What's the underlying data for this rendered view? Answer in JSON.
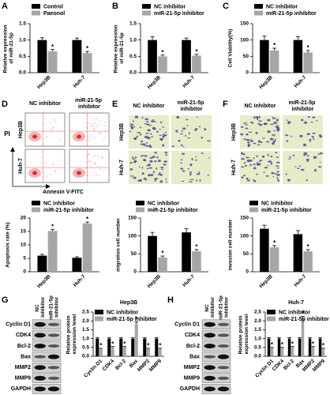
{
  "panel_labels": [
    "A",
    "B",
    "C",
    "D",
    "E",
    "F",
    "G",
    "H"
  ],
  "chart_data": [
    {
      "type": "bar",
      "y_label": "Relative expression of miR-21-5p",
      "categories": [
        "Hep3B",
        "Huh-7"
      ],
      "series": [
        {
          "name": "Control",
          "color": "#000000",
          "values": [
            1.0,
            1.0
          ],
          "errors": [
            0.07,
            0.06
          ]
        },
        {
          "name": "Paeonol",
          "color": "#a6a6a6",
          "values": [
            0.65,
            0.6
          ],
          "errors": [
            0.06,
            0.05
          ],
          "annotations": [
            "*",
            "*"
          ]
        }
      ],
      "ylim": [
        0,
        1.5
      ],
      "yticks": [
        {
          "value": 0,
          "label": "0.0"
        },
        0.5,
        {
          "value": 1,
          "label": "1.0"
        },
        1.5
      ]
    },
    {
      "type": "bar",
      "y_label": "Relative expression of miR-21-5p",
      "categories": [
        "Hep3B",
        "Huh-7"
      ],
      "series": [
        {
          "name": "NC inhibitor",
          "color": "#000000",
          "values": [
            1.0,
            1.0
          ],
          "errors": [
            0.1,
            0.06
          ]
        },
        {
          "name": "miR-21-5p inhibitor",
          "color": "#a6a6a6",
          "values": [
            0.5,
            0.52
          ],
          "errors": [
            0.04,
            0.04
          ],
          "annotations": [
            "*",
            "*"
          ]
        }
      ],
      "ylim": [
        0,
        1.5
      ],
      "yticks": [
        {
          "value": 0,
          "label": "0.0"
        },
        0.5,
        {
          "value": 1,
          "label": "1.0"
        },
        1.5
      ]
    },
    {
      "type": "bar",
      "y_label": "Cell Viability(%)",
      "categories": [
        "Hep3B",
        "Huh-7"
      ],
      "series": [
        {
          "name": "NC inhibitor",
          "color": "#000000",
          "values": [
            100,
            100
          ],
          "errors": [
            12,
            10
          ]
        },
        {
          "name": "miR-21-5p inhibitor",
          "color": "#a6a6a6",
          "values": [
            68,
            62
          ],
          "errors": [
            7,
            6
          ],
          "annotations": [
            "*",
            "*"
          ]
        }
      ],
      "ylim": [
        0,
        150
      ],
      "yticks": [
        0,
        50,
        100,
        150
      ]
    },
    {
      "type": "bar",
      "y_label": "Apoptosis rate (%)",
      "categories": [
        "Hep3B",
        "Huh-7"
      ],
      "series": [
        {
          "name": "NC inhibitor",
          "color": "#000000",
          "values": [
            6,
            5.2
          ],
          "errors": [
            0.5,
            0.4
          ]
        },
        {
          "name": "miR-21-5p inhibitor",
          "color": "#a6a6a6",
          "values": [
            15.2,
            18
          ],
          "errors": [
            0.6,
            0.5
          ],
          "annotations": [
            "*",
            "*"
          ]
        }
      ],
      "ylim": [
        0,
        20
      ],
      "yticks": [
        0,
        5,
        10,
        15,
        20
      ]
    },
    {
      "type": "bar",
      "y_label": "migration cell number",
      "categories": [
        "Hep3B",
        "Huh-7"
      ],
      "series": [
        {
          "name": "NC inhibitor",
          "color": "#000000",
          "values": [
            100,
            110
          ],
          "errors": [
            10,
            10
          ]
        },
        {
          "name": "miR-21-5p inhibitor",
          "color": "#a6a6a6",
          "values": [
            40,
            57
          ],
          "errors": [
            4,
            5
          ],
          "annotations": [
            "*",
            "*"
          ]
        }
      ],
      "ylim": [
        0,
        150
      ],
      "yticks": [
        0,
        50,
        100,
        150
      ]
    },
    {
      "type": "bar",
      "y_label": "invasion cell number",
      "categories": [
        "Hep3B",
        "Huh-7"
      ],
      "series": [
        {
          "name": "NC inhibitor",
          "color": "#000000",
          "values": [
            120,
            105
          ],
          "errors": [
            10,
            10
          ]
        },
        {
          "name": "miR-21-5p inhibitor",
          "color": "#a6a6a6",
          "values": [
            68,
            57
          ],
          "errors": [
            5,
            5
          ],
          "annotations": [
            "*",
            "*"
          ]
        }
      ],
      "ylim": [
        0,
        150
      ],
      "yticks": [
        0,
        50,
        100,
        150
      ]
    },
    {
      "type": "bar",
      "title": "Hep3B",
      "y_label": "Relative protein expression level",
      "categories": [
        "Cyclin D1",
        "CDK4",
        "Bcl-2",
        "Bax",
        "MMP2",
        "MMP9"
      ],
      "series": [
        {
          "name": "NC inhibitor",
          "color": "#000000",
          "values": [
            1,
            1,
            1,
            1,
            1,
            1
          ],
          "errors": [
            0.06,
            0.06,
            0.06,
            0.06,
            0.06,
            0.06
          ]
        },
        {
          "name": "miR-21-5p inhibitor",
          "color": "#a6a6a6",
          "values": [
            0.4,
            0.5,
            0.5,
            1.85,
            0.4,
            0.4
          ],
          "errors": [
            0.05,
            0.05,
            0.05,
            0.1,
            0.05,
            0.05
          ],
          "annotations": [
            "*",
            "*",
            "*",
            "*",
            "*",
            "*"
          ]
        }
      ],
      "ylim": [
        0,
        2.5
      ],
      "yticks": [
        {
          "value": 0,
          "label": "0.0"
        },
        0.5,
        {
          "value": 1,
          "label": "1.0"
        },
        1.5,
        {
          "value": 2,
          "label": "2.0"
        },
        2.5
      ]
    },
    {
      "type": "bar",
      "title": "Huh-7",
      "y_label": "Relative protein expression level",
      "categories": [
        "Cyclin D1",
        "CDK4",
        "Bcl-2",
        "Bax",
        "MMP2",
        "MMP9"
      ],
      "series": [
        {
          "name": "NC inhibitor",
          "color": "#000000",
          "values": [
            1,
            1,
            1,
            1,
            1,
            1
          ],
          "errors": [
            0.06,
            0.06,
            0.06,
            0.06,
            0.06,
            0.06
          ]
        },
        {
          "name": "miR-21-5p inhibitor",
          "color": "#a6a6a6",
          "values": [
            0.45,
            0.45,
            0.5,
            2.15,
            0.5,
            0.4
          ],
          "errors": [
            0.05,
            0.05,
            0.05,
            0.1,
            0.05,
            0.05
          ],
          "annotations": [
            "*",
            "*",
            "*",
            "*",
            "*",
            "*"
          ]
        }
      ],
      "ylim": [
        0,
        2.5
      ],
      "yticks": [
        {
          "value": 0,
          "label": "0.0"
        },
        0.5,
        {
          "value": 1,
          "label": "1.0"
        },
        1.5,
        {
          "value": 2,
          "label": "2.0"
        },
        2.5
      ]
    }
  ],
  "flow": {
    "columns": [
      "NC inhibitor",
      "miR-21-5p inhibitor"
    ],
    "rows": [
      "Hep3B",
      "Huh-7"
    ],
    "y_label": "PI",
    "x_label": "Annexin V-FITC"
  },
  "migration_images": {
    "columns": [
      "NC inhibitor",
      "miR-21-5p inhibitor"
    ],
    "rows": [
      "Hep3B",
      "Huh-7"
    ]
  },
  "invasion_images": {
    "columns": [
      "NC inhibitor",
      "miR-21-5p inhibitor"
    ],
    "rows": [
      "Hep3B",
      "Huh-7"
    ]
  },
  "blot_hep3b": {
    "columns": [
      "NC inhibitor",
      "miR-21-5p inhibitor"
    ],
    "rows": [
      "Cyclin D1",
      "CDK4",
      "Bcl-2",
      "Bax",
      "MMP2",
      "MMP9",
      "GAPDH"
    ]
  },
  "blot_huh7": {
    "columns": [
      "NC inhibitor",
      "miR-21-5p inhibitor"
    ],
    "rows": [
      "Cyclin D1",
      "CDK4",
      "Bcl-2",
      "Bax",
      "MMP2",
      "MMP9",
      "GAPDH"
    ]
  }
}
